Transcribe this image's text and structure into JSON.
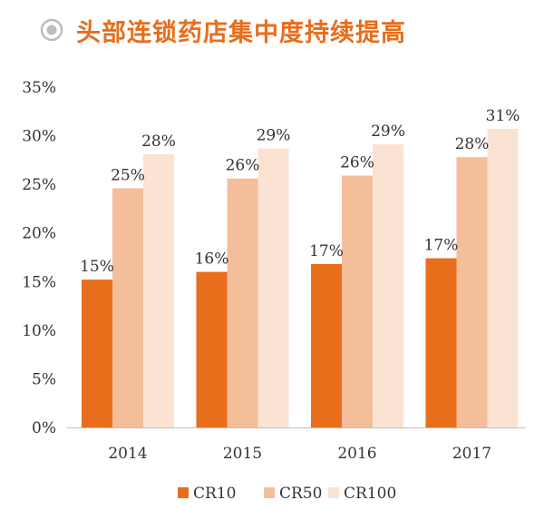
{
  "title": "头部连锁药店集中度持续提高",
  "icon": "radio-button-icon",
  "colors": {
    "accent": "#E86E1C",
    "CR10": "#E86E1C",
    "CR50": "#F5BE9B",
    "CR100": "#FBE3D3",
    "axis": "#BFBFBF",
    "icon": "#BDBDBD"
  },
  "chart_data": {
    "type": "bar",
    "categories": [
      "2014",
      "2015",
      "2016",
      "2017"
    ],
    "series": [
      {
        "name": "CR10",
        "values": [
          15.2,
          16.0,
          16.8,
          17.4
        ],
        "labels": [
          "15%",
          "16%",
          "17%",
          "17%"
        ]
      },
      {
        "name": "CR50",
        "values": [
          24.6,
          25.6,
          25.9,
          27.8
        ],
        "labels": [
          "25%",
          "26%",
          "26%",
          "28%"
        ]
      },
      {
        "name": "CR100",
        "values": [
          28.1,
          28.7,
          29.1,
          30.7
        ],
        "labels": [
          "28%",
          "29%",
          "29%",
          "31%"
        ]
      }
    ],
    "ylim": [
      0,
      35
    ],
    "yticks": [
      "0%",
      "5%",
      "10%",
      "15%",
      "20%",
      "25%",
      "30%",
      "35%"
    ],
    "ytick_values": [
      0,
      5,
      10,
      15,
      20,
      25,
      30,
      35
    ],
    "grid": false,
    "legend": "bottom-center"
  }
}
